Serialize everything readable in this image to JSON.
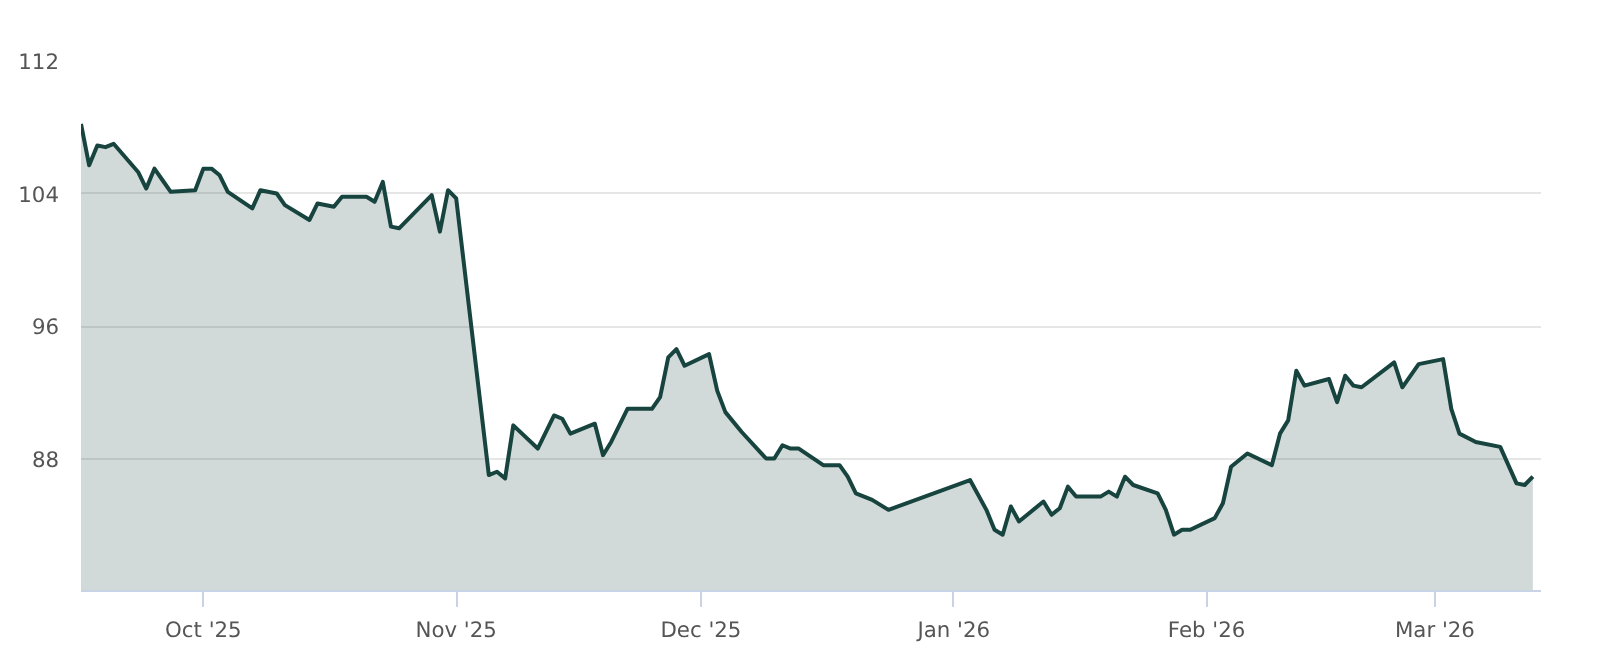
{
  "chart_data": {
    "type": "area",
    "x": [
      "2025-09-16",
      "2025-09-17",
      "2025-09-18",
      "2025-09-19",
      "2025-09-20",
      "2025-09-23",
      "2025-09-24",
      "2025-09-25",
      "2025-09-26",
      "2025-09-27",
      "2025-09-30",
      "2025-10-01",
      "2025-10-02",
      "2025-10-03",
      "2025-10-04",
      "2025-10-07",
      "2025-10-08",
      "2025-10-10",
      "2025-10-11",
      "2025-10-14",
      "2025-10-15",
      "2025-10-17",
      "2025-10-18",
      "2025-10-21",
      "2025-10-22",
      "2025-10-23",
      "2025-10-24",
      "2025-10-25",
      "2025-10-29",
      "2025-10-30",
      "2025-10-31",
      "2025-11-01",
      "2025-11-05",
      "2025-11-06",
      "2025-11-07",
      "2025-11-08",
      "2025-11-11",
      "2025-11-13",
      "2025-11-14",
      "2025-11-15",
      "2025-11-18",
      "2025-11-19",
      "2025-11-20",
      "2025-11-22",
      "2025-11-25",
      "2025-11-26",
      "2025-11-27",
      "2025-11-28",
      "2025-11-29",
      "2025-12-02",
      "2025-12-03",
      "2025-12-04",
      "2025-12-06",
      "2025-12-09",
      "2025-12-10",
      "2025-12-11",
      "2025-12-12",
      "2025-12-13",
      "2025-12-16",
      "2025-12-18",
      "2025-12-19",
      "2025-12-20",
      "2025-12-22",
      "2025-12-24",
      "2026-01-03",
      "2026-01-05",
      "2026-01-06",
      "2026-01-07",
      "2026-01-08",
      "2026-01-09",
      "2026-01-12",
      "2026-01-13",
      "2026-01-14",
      "2026-01-15",
      "2026-01-16",
      "2026-01-19",
      "2026-01-20",
      "2026-01-21",
      "2026-01-22",
      "2026-01-23",
      "2026-01-26",
      "2026-01-27",
      "2026-01-28",
      "2026-01-29",
      "2026-01-30",
      "2026-02-02",
      "2026-02-03",
      "2026-02-04",
      "2026-02-06",
      "2026-02-09",
      "2026-02-10",
      "2026-02-11",
      "2026-02-12",
      "2026-02-13",
      "2026-02-16",
      "2026-02-17",
      "2026-02-18",
      "2026-02-19",
      "2026-02-20",
      "2026-02-24",
      "2026-02-25",
      "2026-02-27",
      "2026-03-02",
      "2026-03-03",
      "2026-03-04",
      "2026-03-06",
      "2026-03-09",
      "2026-03-11",
      "2026-03-12",
      "2026-03-13"
    ],
    "series": [
      {
        "color": "#17443f",
        "values": [
          108.2,
          105.7,
          106.9,
          106.8,
          107.0,
          105.3,
          104.3,
          105.5,
          104.8,
          104.1,
          104.2,
          105.5,
          105.5,
          105.1,
          104.1,
          103.1,
          104.2,
          104.0,
          103.3,
          102.4,
          103.4,
          103.2,
          103.8,
          103.8,
          103.5,
          104.7,
          102.0,
          101.9,
          103.9,
          101.7,
          104.2,
          103.7,
          87.0,
          87.2,
          86.8,
          90.0,
          88.6,
          90.6,
          90.4,
          89.5,
          90.1,
          88.2,
          89.0,
          91.0,
          91.0,
          91.7,
          94.1,
          94.6,
          93.6,
          94.3,
          92.1,
          90.8,
          89.6,
          88.0,
          88.0,
          88.8,
          88.6,
          88.6,
          87.6,
          87.6,
          86.9,
          85.9,
          85.5,
          84.9,
          86.7,
          84.9,
          83.7,
          83.4,
          85.1,
          84.2,
          85.4,
          84.6,
          85.0,
          86.3,
          85.7,
          85.7,
          86.0,
          85.7,
          86.9,
          86.4,
          85.9,
          84.9,
          83.4,
          83.7,
          83.7,
          84.4,
          85.3,
          87.5,
          88.3,
          87.6,
          89.5,
          90.3,
          93.3,
          92.4,
          92.8,
          91.4,
          93.0,
          92.4,
          92.3,
          93.8,
          92.3,
          93.7,
          94.0,
          91.0,
          89.5,
          89.0,
          88.7,
          86.5,
          86.4,
          86.9
        ]
      }
    ],
    "xlim": [
      "2025-09-16",
      "2026-03-14"
    ],
    "xticks": [
      {
        "value": "2025-10-01",
        "label": "Oct '25"
      },
      {
        "value": "2025-11-01",
        "label": "Nov '25"
      },
      {
        "value": "2025-12-01",
        "label": "Dec '25"
      },
      {
        "value": "2026-01-01",
        "label": "Jan '26"
      },
      {
        "value": "2026-02-01",
        "label": "Feb '26"
      },
      {
        "value": "2026-03-01",
        "label": "Mar '26"
      }
    ],
    "ylim": [
      80,
      112
    ],
    "yticks": [
      88,
      96,
      104,
      112
    ],
    "grid": "y",
    "marker": "none",
    "line_style": "solid"
  }
}
